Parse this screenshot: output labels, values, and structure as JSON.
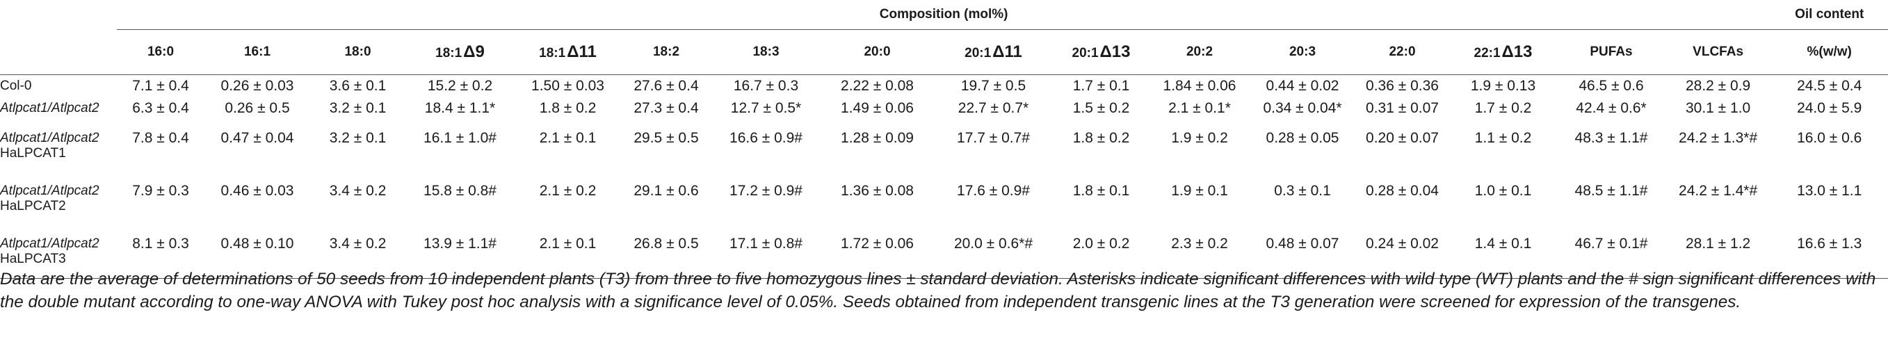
{
  "header": {
    "composition_title": "Composition (mol%)",
    "oil_title": "Oil content"
  },
  "columns": [
    {
      "base": "16:0",
      "delta": ""
    },
    {
      "base": "16:1",
      "delta": ""
    },
    {
      "base": "18:0",
      "delta": ""
    },
    {
      "base": "18:1",
      "delta": "Δ9"
    },
    {
      "base": "18:1",
      "delta": "Δ11"
    },
    {
      "base": "18:2",
      "delta": ""
    },
    {
      "base": "18:3",
      "delta": ""
    },
    {
      "base": "20:0",
      "delta": ""
    },
    {
      "base": "20:1",
      "delta": "Δ11"
    },
    {
      "base": "20:1",
      "delta": "Δ13"
    },
    {
      "base": "20:2",
      "delta": ""
    },
    {
      "base": "20:3",
      "delta": ""
    },
    {
      "base": "22:0",
      "delta": ""
    },
    {
      "base": "22:1",
      "delta": "Δ13"
    },
    {
      "base": "PUFAs",
      "delta": ""
    },
    {
      "base": "VLCFAs",
      "delta": ""
    },
    {
      "base": "%(w/w)",
      "delta": ""
    }
  ],
  "rows": [
    {
      "line1": "Col-0",
      "line2": "",
      "values": [
        "7.1 ± 0.4",
        "0.26 ± 0.03",
        "3.6 ± 0.1",
        "15.2 ± 0.2",
        "1.50 ± 0.03",
        "27.6 ± 0.4",
        "16.7 ± 0.3",
        "2.22 ± 0.08",
        "19.7 ± 0.5",
        "1.7 ± 0.1",
        "1.84 ± 0.06",
        "0.44 ± 0.02",
        "0.36 ± 0.36",
        "1.9 ± 0.13",
        "46.5 ± 0.6",
        "28.2 ± 0.9",
        "24.5 ± 0.4"
      ]
    },
    {
      "line1": "Atlpcat1/Atlpcat2",
      "line2": "",
      "values": [
        "6.3 ± 0.4",
        "0.26 ± 0.5",
        "3.2 ± 0.1",
        "18.4 ± 1.1*",
        "1.8 ± 0.2",
        "27.3 ± 0.4",
        "12.7 ± 0.5*",
        "1.49 ± 0.06",
        "22.7 ± 0.7*",
        "1.5 ± 0.2",
        "2.1 ± 0.1*",
        "0.34 ± 0.04*",
        "0.31 ± 0.07",
        "1.7 ± 0.2",
        "42.4 ± 0.6*",
        "30.1 ± 1.0",
        "24.0 ± 5.9"
      ]
    },
    {
      "line1": "Atlpcat1/Atlpcat2",
      "line2": "HaLPCAT1",
      "values": [
        "7.8 ± 0.4",
        "0.47 ± 0.04",
        "3.2 ± 0.1",
        "16.1 ± 1.0#",
        "2.1 ± 0.1",
        "29.5 ± 0.5",
        "16.6 ± 0.9#",
        "1.28 ± 0.09",
        "17.7 ± 0.7#",
        "1.8 ± 0.2",
        "1.9 ± 0.2",
        "0.28 ± 0.05",
        "0.20 ± 0.07",
        "1.1 ± 0.2",
        "48.3 ± 1.1#",
        "24.2 ± 1.3*#",
        "16.0 ± 0.6"
      ]
    },
    {
      "line1": "Atlpcat1/Atlpcat2",
      "line2": "HaLPCAT2",
      "values": [
        "7.9 ± 0.3",
        "0.46 ± 0.03",
        "3.4 ± 0.2",
        "15.8 ± 0.8#",
        "2.1 ± 0.2",
        "29.1 ± 0.6",
        "17.2 ± 0.9#",
        "1.36 ± 0.08",
        "17.6 ± 0.9#",
        "1.8 ± 0.1",
        "1.9 ± 0.1",
        "0.3 ± 0.1",
        "0.28 ± 0.04",
        "1.0 ± 0.1",
        "48.5 ± 1.1#",
        "24.2 ± 1.4*#",
        "13.0 ± 1.1"
      ]
    },
    {
      "line1": "Atlpcat1/Atlpcat2",
      "line2": "HaLPCAT3",
      "values": [
        "8.1 ± 0.3",
        "0.48 ± 0.10",
        "3.4 ± 0.2",
        "13.9 ± 1.1#",
        "2.1 ± 0.1",
        "26.8 ± 0.5",
        "17.1 ± 0.8#",
        "1.72 ± 0.06",
        "20.0 ± 0.6*#",
        "2.0 ± 0.2",
        "2.3 ± 0.2",
        "0.48 ± 0.07",
        "0.24 ± 0.02",
        "1.4 ± 0.1",
        "46.7 ± 0.1#",
        "28.1 ± 1.2",
        "16.6 ± 1.3"
      ]
    }
  ],
  "footnote": "Data are the average of determinations of 50 seeds from 10 independent plants (T3) from three to five homozygous lines ± standard deviation. Asterisks indicate significant differences with wild type (WT) plants and the # sign significant differences with the double mutant according to one-way ANOVA with Tukey post hoc analysis with a significance level of 0.05%. Seeds obtained from independent transgenic lines at the T3 generation were screened for expression of the transgenes."
}
